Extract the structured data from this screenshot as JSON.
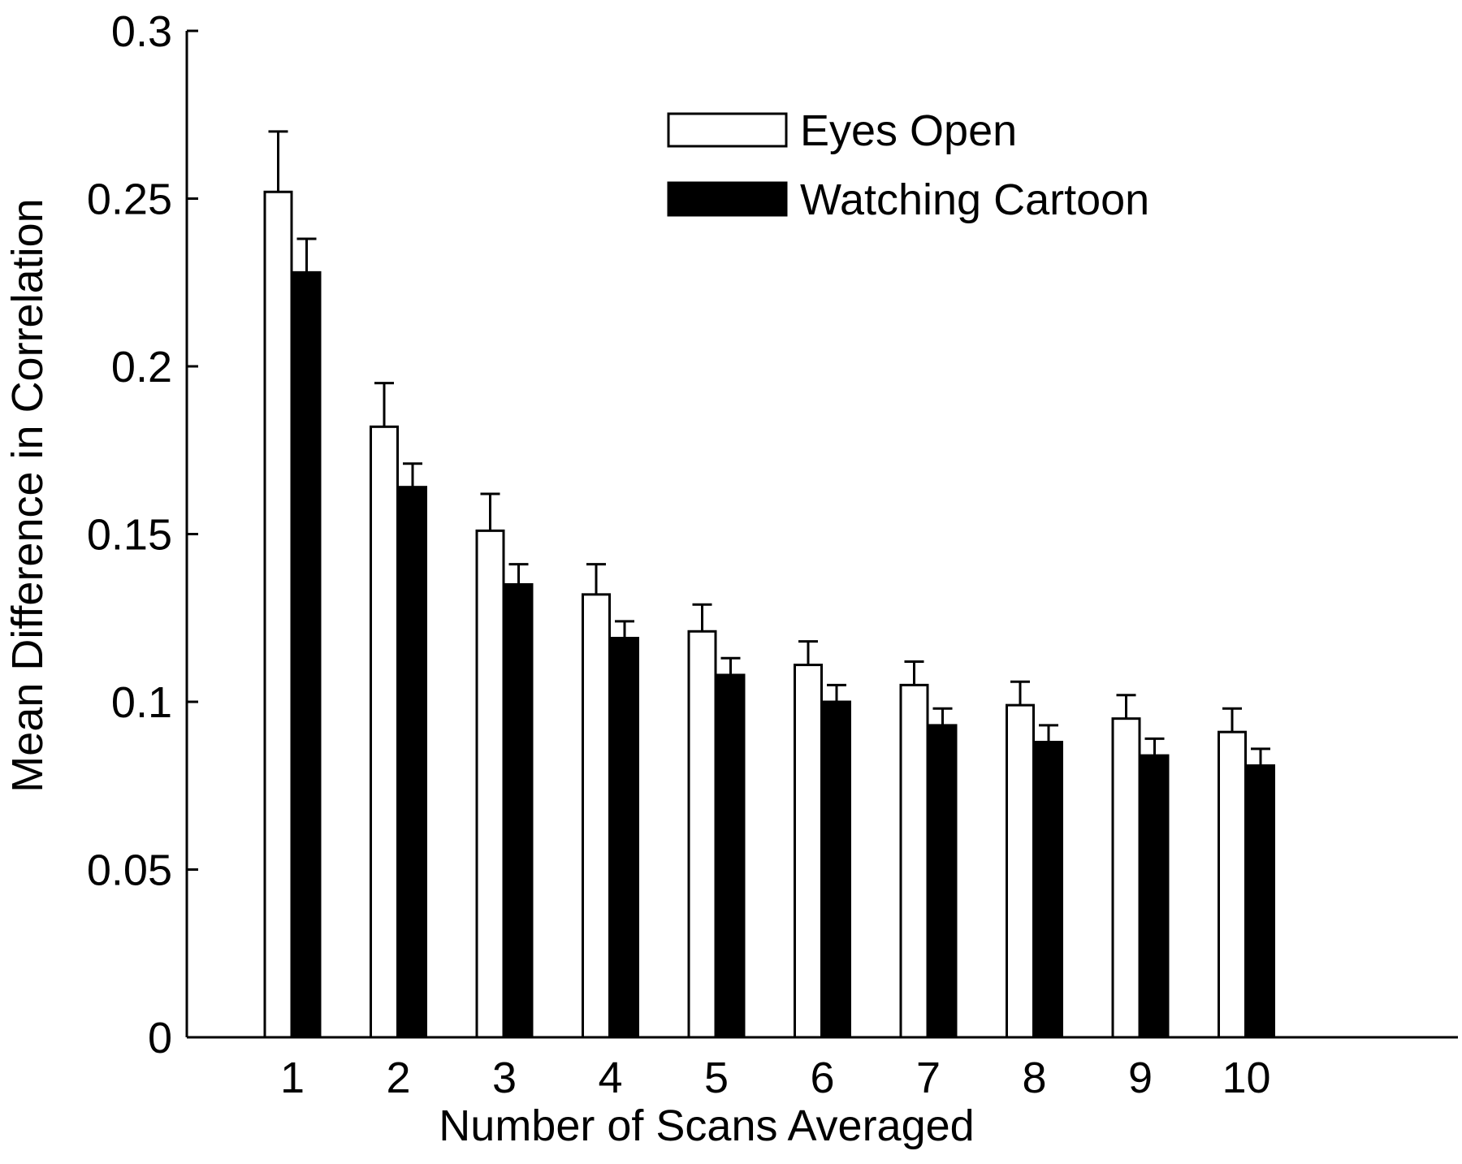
{
  "chart_data": {
    "type": "bar",
    "title": "",
    "xlabel": "Number of Scans Averaged",
    "ylabel": "Mean Difference in Correlation",
    "categories": [
      "1",
      "2",
      "3",
      "4",
      "5",
      "6",
      "7",
      "8",
      "9",
      "10"
    ],
    "ylim": [
      0,
      0.3
    ],
    "yticks": [
      "0",
      "0.05",
      "0.1",
      "0.15",
      "0.2",
      "0.25",
      "0.3"
    ],
    "grid": false,
    "legend_position": "top-right",
    "error_bars": "upper",
    "series": [
      {
        "name": "Eyes Open",
        "fill": "#ffffff",
        "values": [
          0.252,
          0.182,
          0.151,
          0.132,
          0.121,
          0.111,
          0.105,
          0.099,
          0.095,
          0.091
        ],
        "error": [
          0.018,
          0.013,
          0.011,
          0.009,
          0.008,
          0.007,
          0.007,
          0.007,
          0.007,
          0.007
        ]
      },
      {
        "name": "Watching Cartoon",
        "fill": "#000000",
        "values": [
          0.228,
          0.164,
          0.135,
          0.119,
          0.108,
          0.1,
          0.093,
          0.088,
          0.084,
          0.081
        ],
        "error": [
          0.01,
          0.007,
          0.006,
          0.005,
          0.005,
          0.005,
          0.005,
          0.005,
          0.005,
          0.005
        ]
      }
    ]
  }
}
